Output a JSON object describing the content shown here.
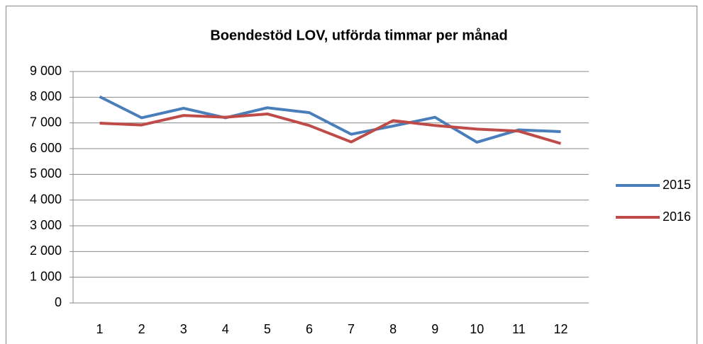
{
  "chart_data": {
    "type": "line",
    "title": "Boendestöd LOV, utförda timmar per månad",
    "categories": [
      "1",
      "2",
      "3",
      "4",
      "5",
      "6",
      "7",
      "8",
      "9",
      "10",
      "11",
      "12"
    ],
    "series": [
      {
        "name": "2015",
        "color": "#4a7ebb",
        "values": [
          8020,
          7200,
          7570,
          7200,
          7590,
          7400,
          6560,
          6880,
          7220,
          6250,
          6730,
          6660
        ]
      },
      {
        "name": "2016",
        "color": "#be4b48",
        "values": [
          6990,
          6920,
          7290,
          7220,
          7350,
          6900,
          6260,
          7090,
          6900,
          6760,
          6680,
          6200
        ]
      }
    ],
    "ylim": [
      0,
      9000
    ],
    "yticks": [
      0,
      {
        "value": 1000,
        "label": "1 000"
      },
      {
        "value": 2000,
        "label": "2 000"
      },
      {
        "value": 3000,
        "label": "3 000"
      },
      {
        "value": 4000,
        "label": "4 000"
      },
      {
        "value": 5000,
        "label": "5 000"
      },
      {
        "value": 6000,
        "label": "6 000"
      },
      {
        "value": 7000,
        "label": "7 000"
      },
      {
        "value": 8000,
        "label": "8 000"
      },
      {
        "value": 9000,
        "label": "9 000"
      }
    ],
    "grid": true,
    "legend": "right"
  }
}
